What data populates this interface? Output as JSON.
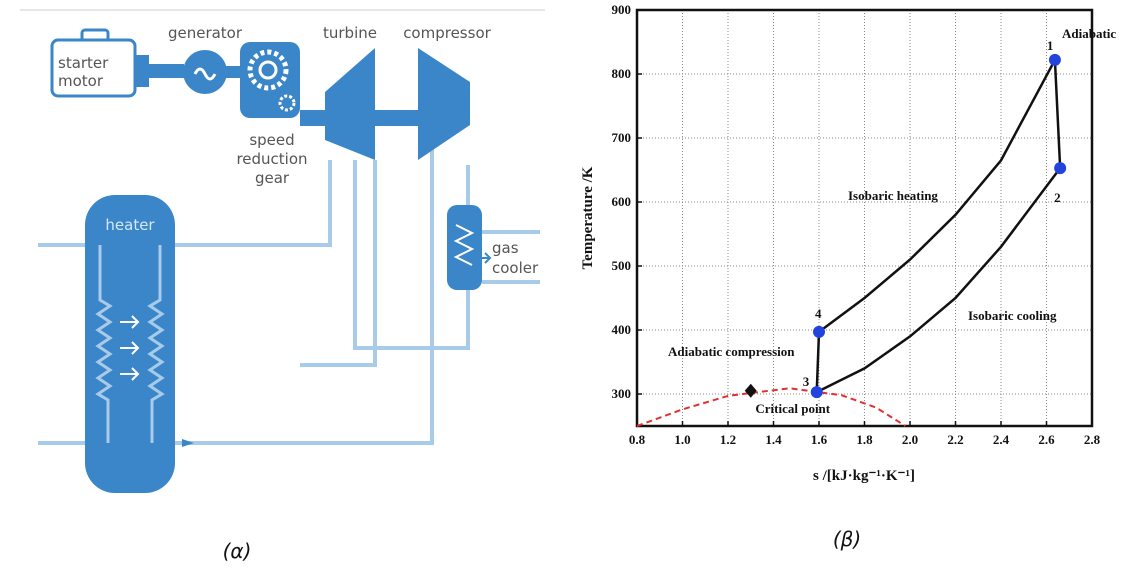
{
  "diagram": {
    "starter_motor": [
      "starter",
      "motor"
    ],
    "generator": "generator",
    "turbine": "turbine",
    "compressor": "compressor",
    "speed_reduction_gear": [
      "speed",
      "reduction",
      "gear"
    ],
    "heater": "heater",
    "gas_cooler": [
      "gas",
      "cooler"
    ]
  },
  "captions": [
    "(α)",
    "(β)"
  ],
  "chart_data": {
    "type": "line",
    "x_label": "s /[kJ·kg⁻¹·K⁻¹]",
    "y_label": "Temperature /K",
    "xlim": [
      0.8,
      2.8
    ],
    "xticks": [
      0.8,
      {
        "value": 1,
        "label": "1.0"
      },
      1.2,
      1.4,
      1.6,
      1.8,
      {
        "value": 2,
        "label": "2.0"
      },
      2.2,
      2.4,
      2.6,
      2.8
    ],
    "ylim": [
      250,
      900
    ],
    "yticks": [
      300,
      400,
      500,
      600,
      700,
      800,
      900
    ],
    "grid": true,
    "series": [
      {
        "name": "Isobaric heating",
        "color": "#111111",
        "x": [
          1.6,
          1.8,
          2.0,
          2.2,
          2.4,
          2.637
        ],
        "values": [
          397,
          450,
          510,
          580,
          665,
          822
        ]
      },
      {
        "name": "Isobaric cooling",
        "color": "#111111",
        "x": [
          1.59,
          1.8,
          2.0,
          2.2,
          2.4,
          2.66
        ],
        "values": [
          303,
          340,
          390,
          450,
          530,
          653
        ]
      },
      {
        "name": "Adiabatic",
        "color": "#111111",
        "x": [
          2.637,
          2.66
        ],
        "values": [
          822,
          653
        ]
      },
      {
        "name": "Adiabatic compression",
        "color": "#111111",
        "x": [
          1.59,
          1.6
        ],
        "values": [
          303,
          397
        ]
      },
      {
        "color": "#e03030",
        "style": "dashed",
        "x": [
          0.8,
          1.0,
          1.2,
          1.47,
          1.7,
          1.85,
          1.98
        ],
        "values": [
          250,
          276,
          297,
          309,
          298,
          279,
          250
        ]
      }
    ],
    "points": {
      "labels": [
        "1",
        "2",
        "3",
        "4"
      ],
      "x": [
        2.637,
        2.66,
        1.59,
        1.6
      ],
      "values": [
        822,
        653,
        303,
        397
      ],
      "color": "#2244dd"
    },
    "critical_point": {
      "label": "Critical point",
      "x": 1.3,
      "value": 305
    }
  }
}
